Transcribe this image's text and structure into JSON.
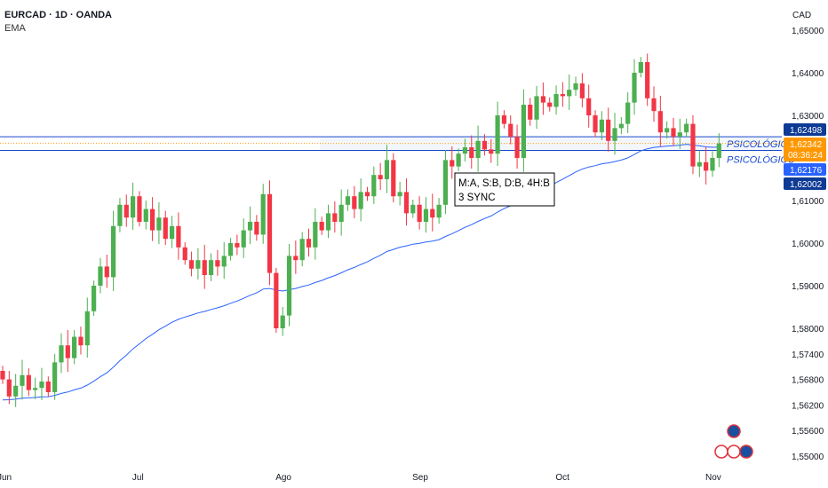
{
  "header": {
    "symbol_line": "EURCAD · 1D · OANDA",
    "indicator": "EMA"
  },
  "chart_data": {
    "type": "candlestick",
    "symbol": "EURCAD",
    "interval": "1D",
    "source": "OANDA",
    "currency": "CAD",
    "y_ticks": [
      1.65,
      1.64,
      1.63,
      1.61,
      1.6,
      1.59,
      1.58,
      1.574,
      1.568,
      1.562,
      1.556,
      1.55
    ],
    "x_ticks": [
      {
        "label": "Jun",
        "index": 0
      },
      {
        "label": "Jul",
        "index": 21
      },
      {
        "label": "Ago",
        "index": 43
      },
      {
        "label": "Sep",
        "index": 64
      },
      {
        "label": "Oct",
        "index": 86
      },
      {
        "label": "Nov",
        "index": 109
      }
    ],
    "closes": [
      1.568,
      1.564,
      1.5665,
      1.569,
      1.5655,
      1.566,
      1.5675,
      1.565,
      1.572,
      1.576,
      1.573,
      1.578,
      1.576,
      1.584,
      1.59,
      1.5945,
      1.592,
      1.604,
      1.609,
      1.606,
      1.611,
      1.605,
      1.608,
      1.603,
      1.606,
      1.601,
      1.604,
      1.599,
      1.596,
      1.594,
      1.596,
      1.5925,
      1.596,
      1.5945,
      1.597,
      1.6,
      1.599,
      1.603,
      1.605,
      1.602,
      1.6115,
      1.593,
      1.58,
      1.583,
      1.597,
      1.596,
      1.601,
      1.599,
      1.605,
      1.603,
      1.607,
      1.605,
      1.609,
      1.611,
      1.608,
      1.612,
      1.611,
      1.616,
      1.615,
      1.6195,
      1.611,
      1.612,
      1.607,
      1.609,
      1.605,
      1.608,
      1.606,
      1.609,
      1.6195,
      1.618,
      1.621,
      1.6225,
      1.62,
      1.624,
      1.622,
      1.621,
      1.63,
      1.628,
      1.625,
      1.62,
      1.6325,
      1.629,
      1.6345,
      1.633,
      1.632,
      1.635,
      1.6345,
      1.636,
      1.6375,
      1.634,
      1.63,
      1.626,
      1.629,
      1.624,
      1.627,
      1.628,
      1.633,
      1.64,
      1.6425,
      1.634,
      1.631,
      1.626,
      1.627,
      1.625,
      1.626,
      1.628,
      1.618,
      1.619,
      1.617,
      1.62,
      1.6234
    ],
    "first_open": 1.57,
    "ema_seed": 1.563,
    "ema_period": 50,
    "colors": {
      "up": "#4caf50",
      "down": "#f23645",
      "ema": "#2962ff",
      "level": "#1848cc",
      "price": "#ff9800"
    },
    "levels": [
      {
        "price": "1,62498",
        "value": 1.62498,
        "label": "PSICOLÓGICO"
      },
      {
        "price": "1,62176",
        "value": 1.62176,
        "label": "PSICOLÓGICO"
      }
    ],
    "price_tags": {
      "last": "1,62342",
      "countdown": "08:36:24",
      "low_tag": "1,62002",
      "last_value": 1.62342,
      "low_value": 1.62002
    },
    "annotation": {
      "line1": "M:A, S:B, D:B, 4H:B",
      "line2": "3 SYNC"
    }
  }
}
